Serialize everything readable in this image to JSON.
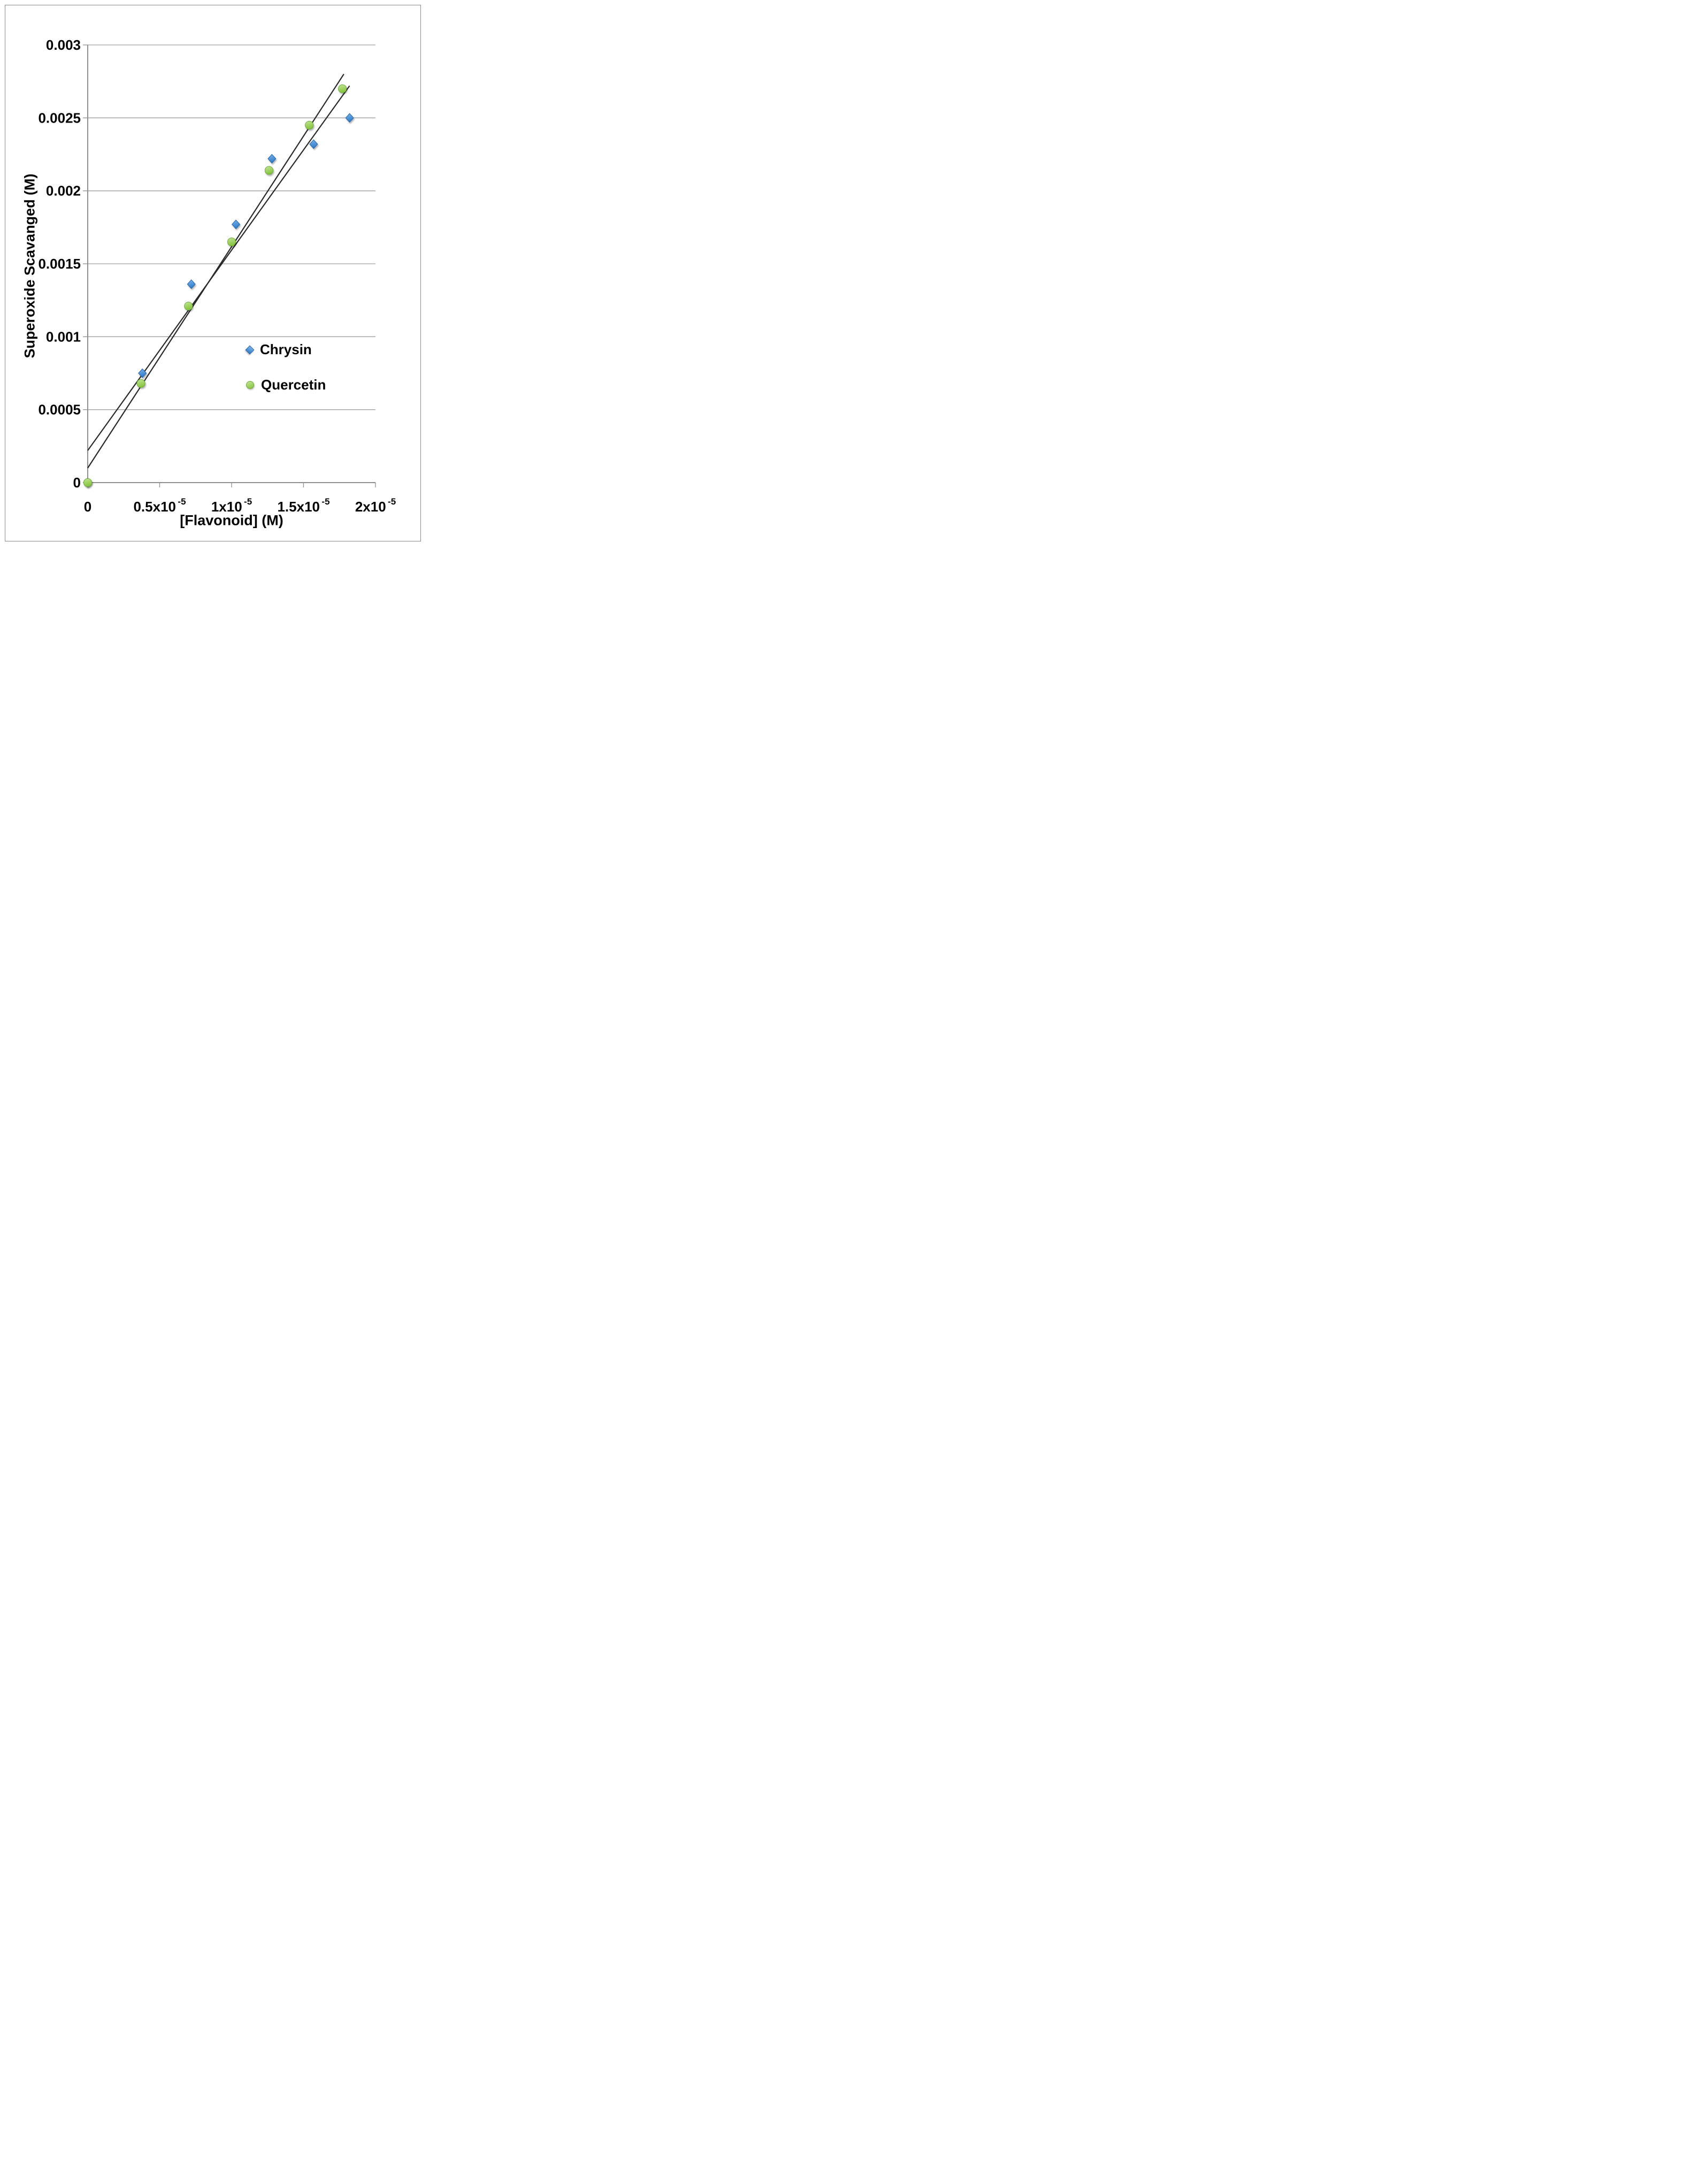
{
  "figure": {
    "background_color": "#ffffff",
    "border_color": "#8a8a8a"
  },
  "chart_data": {
    "type": "scatter",
    "title": "",
    "xlabel": "[Flavonoid] (M)",
    "ylabel": "Superoxide Scavanged (M)",
    "xlim": [
      0,
      2e-05
    ],
    "ylim": [
      0,
      0.003
    ],
    "grid": "horizontal-only",
    "grid_color": "#a0a0a0",
    "axis_color": "#8f8f8f",
    "text_color": "#000000",
    "legend_position": "inside-right",
    "x_ticks": [
      {
        "v": 0,
        "label": "0",
        "sup": ""
      },
      {
        "v": 5e-06,
        "label": "0.5x10",
        "sup": "-5"
      },
      {
        "v": 1e-05,
        "label": "1x10",
        "sup": "-5"
      },
      {
        "v": 1.5e-05,
        "label": "1.5x10",
        "sup": "-5"
      },
      {
        "v": 2e-05,
        "label": "2x10",
        "sup": "-5"
      }
    ],
    "y_ticks": [
      {
        "v": 0,
        "label": "0"
      },
      {
        "v": 0.0005,
        "label": "0.0005"
      },
      {
        "v": 0.001,
        "label": "0.001"
      },
      {
        "v": 0.0015,
        "label": "0.0015"
      },
      {
        "v": 0.002,
        "label": "0.002"
      },
      {
        "v": 0.0025,
        "label": "0.0025"
      },
      {
        "v": 0.003,
        "label": "0.003"
      }
    ],
    "series": [
      {
        "name": "Chrysin",
        "marker": "diamond",
        "fill_light": "#7fb5e9",
        "fill_dark": "#2f7cc9",
        "stroke": "#2866a8",
        "points": [
          [
            0,
            0
          ],
          [
            3.8e-06,
            0.00075
          ],
          [
            7.2e-06,
            0.00136
          ],
          [
            1.03e-05,
            0.00177
          ],
          [
            1.28e-05,
            0.00222
          ],
          [
            1.57e-05,
            0.00232
          ],
          [
            1.82e-05,
            0.0025
          ]
        ]
      },
      {
        "name": "Quercetin",
        "marker": "circle",
        "fill_light": "#c3e593",
        "fill_dark": "#86c440",
        "stroke": "#6fa93c",
        "points": [
          [
            0,
            0
          ],
          [
            3.7e-06,
            0.00068
          ],
          [
            7e-06,
            0.00121
          ],
          [
            1e-05,
            0.00165
          ],
          [
            1.26e-05,
            0.00214
          ],
          [
            1.54e-05,
            0.00245
          ],
          [
            1.77e-05,
            0.0027
          ]
        ]
      }
    ],
    "trendlines": [
      {
        "series": "Chrysin",
        "color": "#282828",
        "x1": 0,
        "y1": 0.00022,
        "x2": 1.82e-05,
        "y2": 0.00272
      },
      {
        "series": "Quercetin",
        "color": "#282828",
        "x1": 0,
        "y1": 0.0001,
        "x2": 1.78e-05,
        "y2": 0.0028
      }
    ]
  }
}
